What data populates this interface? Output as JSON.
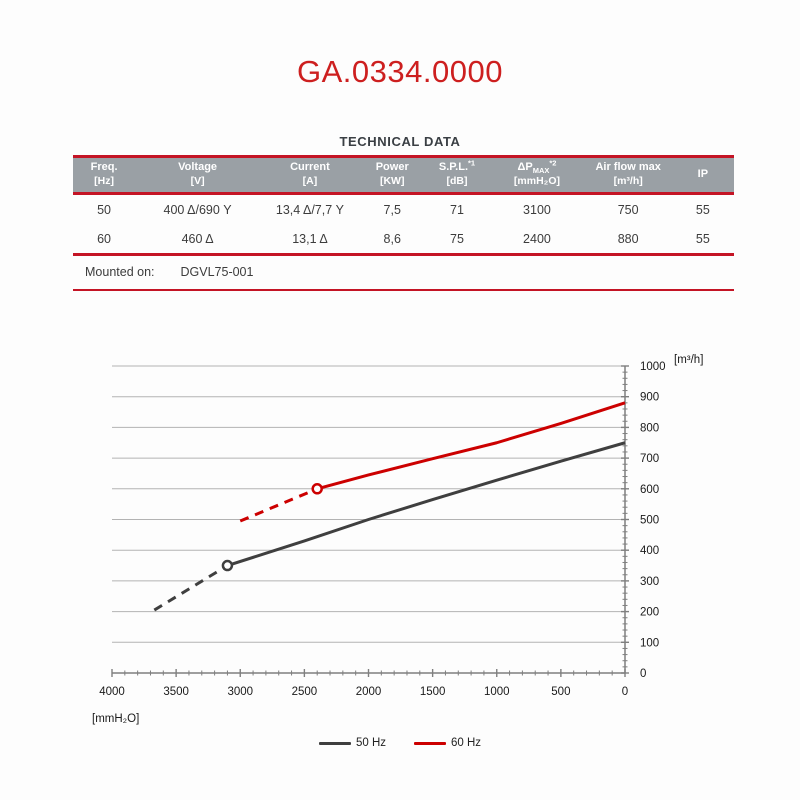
{
  "page": {
    "title": "GA.0334.0000",
    "section_title": "TECHNICAL DATA"
  },
  "table": {
    "columns": [
      {
        "label": "Freq.",
        "unit": "[Hz]"
      },
      {
        "label": "Voltage",
        "unit": "[V]"
      },
      {
        "label": "Current",
        "unit": "[A]"
      },
      {
        "label": "Power",
        "unit": "[KW]"
      },
      {
        "label": "S.P.L.",
        "sup": "*1",
        "unit": "[dB]"
      },
      {
        "label": "ΔP",
        "sub": "MAX",
        "sup": "*2",
        "unit": "[mmH₂O]"
      },
      {
        "label": "Air flow max",
        "unit": "[m³/h]"
      },
      {
        "label": "IP",
        "unit": ""
      }
    ],
    "rows": [
      [
        "50",
        "400 Δ/690 Y",
        "13,4 Δ/7,7 Y",
        "7,5",
        "71",
        "3100",
        "750",
        "55"
      ],
      [
        "60",
        "460 Δ",
        "13,1 Δ",
        "8,6",
        "75",
        "2400",
        "880",
        "55"
      ]
    ],
    "mounted_on_label": "Mounted on:",
    "mounted_on_value": "DGVL75-001"
  },
  "chart_data": {
    "type": "line",
    "title": "",
    "grid": "horizontal",
    "x_axis": {
      "label": "[mmH₂O]",
      "min": 0,
      "max": 4000,
      "reversed": true,
      "major_tick": 500,
      "minor_tick": 100,
      "tick_values": [
        4000,
        3500,
        3000,
        2500,
        2000,
        1500,
        1000,
        500,
        0
      ]
    },
    "y_axis": {
      "label": "[m³/h]",
      "min": 0,
      "max": 1000,
      "position": "right",
      "major_tick": 100,
      "minor_tick": 20,
      "tick_values": [
        0,
        100,
        200,
        300,
        400,
        500,
        600,
        700,
        800,
        900,
        1000
      ]
    },
    "series": [
      {
        "name": "50 Hz",
        "color": "#3f3f3f",
        "dashed_points": [
          [
            3670,
            205
          ],
          [
            3100,
            350
          ]
        ],
        "solid_points": [
          [
            3100,
            350
          ],
          [
            2500,
            430
          ],
          [
            2000,
            500
          ],
          [
            1500,
            565
          ],
          [
            1000,
            628
          ],
          [
            500,
            690
          ],
          [
            0,
            750
          ]
        ],
        "marker": [
          3100,
          350
        ]
      },
      {
        "name": "60 Hz",
        "color": "#cc0000",
        "dashed_points": [
          [
            3000,
            495
          ],
          [
            2400,
            600
          ]
        ],
        "solid_points": [
          [
            2400,
            600
          ],
          [
            2000,
            645
          ],
          [
            1500,
            698
          ],
          [
            1000,
            750
          ],
          [
            500,
            813
          ],
          [
            0,
            880
          ]
        ],
        "marker": [
          2400,
          600
        ]
      }
    ],
    "legend_position": "bottom"
  },
  "colors": {
    "rule_red": "#c41425",
    "title_red": "#cd1f1f",
    "header_gray": "#9aa0a5",
    "text_dark": "#3a3f44",
    "grid_gray": "#b3b3b3",
    "axis_gray": "#7f7f7f",
    "tick_text": "#1a1a1a"
  }
}
